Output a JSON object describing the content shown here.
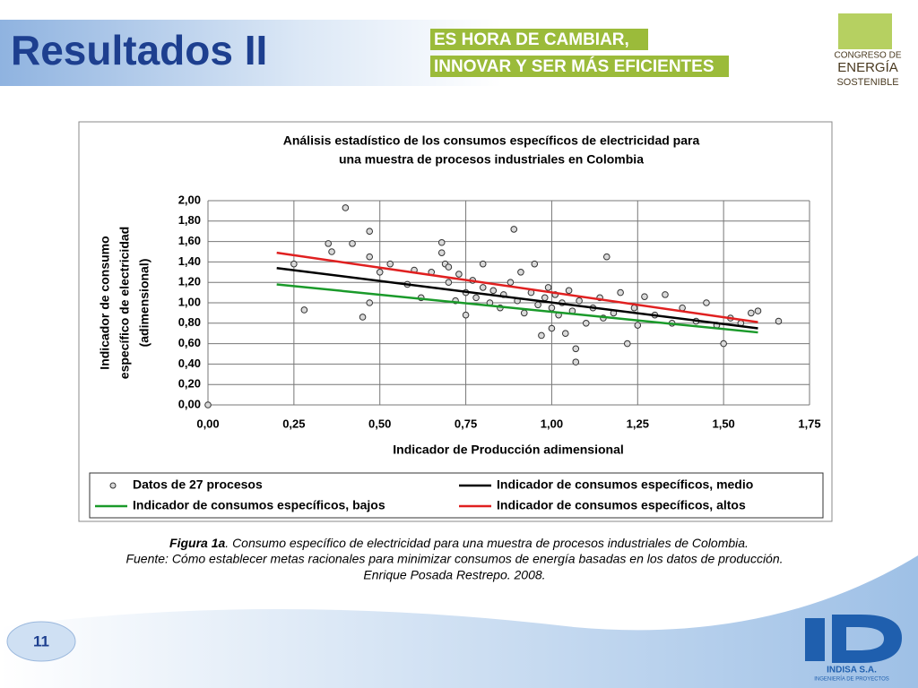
{
  "slide": {
    "title": "Resultados II",
    "banner": [
      "ES HORA DE CAMBIAR,",
      "INNOVAR Y SER MÁS EFICIENTES"
    ],
    "logo": [
      "CONGRESO DE",
      "ENERGÍA",
      "SOSTENIBLE"
    ],
    "caption": {
      "figure_label": "Figura 1a",
      "figure_text": ". Consumo específico de electricidad para una muestra de procesos industriales de Colombia.",
      "source": "Fuente: Cómo establecer metas racionales para minimizar consumos de energía basadas en los datos de producción.",
      "author": "Enrique Posada Restrepo. 2008."
    },
    "page_number": "11",
    "company": "INDISA S.A.",
    "company_tagline": "INGENIERÍA DE PROYECTOS"
  },
  "chart_data": {
    "type": "scatter",
    "title": [
      "Análisis estadístico de los consumos específicos de electricidad para",
      "una muestra de procesos industriales en Colombia"
    ],
    "xlabel": "Indicador de Producción adimensional",
    "ylabel": [
      "Indicador de consumo",
      "específico de electricidad",
      "(adimensional)"
    ],
    "xlim": [
      0,
      1.75
    ],
    "xticks": [
      {
        "value": 0,
        "label": "0,00"
      },
      {
        "value": 0.25,
        "label": "0,25"
      },
      {
        "value": 0.5,
        "label": "0,50"
      },
      {
        "value": 0.75,
        "label": "0,75"
      },
      {
        "value": 1,
        "label": "1,00"
      },
      {
        "value": 1.25,
        "label": "1,25"
      },
      {
        "value": 1.5,
        "label": "1,50"
      },
      {
        "value": 1.75,
        "label": "1,75"
      }
    ],
    "ylim": [
      0,
      2
    ],
    "yticks": [
      {
        "value": 0,
        "label": "0,00"
      },
      {
        "value": 0.2,
        "label": "0,20"
      },
      {
        "value": 0.4,
        "label": "0,40"
      },
      {
        "value": 0.6,
        "label": "0,60"
      },
      {
        "value": 0.8,
        "label": "0,80"
      },
      {
        "value": 1,
        "label": "1,00"
      },
      {
        "value": 1.2,
        "label": "1,20"
      },
      {
        "value": 1.4,
        "label": "1,40"
      },
      {
        "value": 1.6,
        "label": "1,60"
      },
      {
        "value": 1.8,
        "label": "1,80"
      },
      {
        "value": 2,
        "label": "2,00"
      }
    ],
    "grid": true,
    "legend": "bottom",
    "series": [
      {
        "name": "Datos de 27 procesos",
        "kind": "points",
        "color": "#d9d9d9",
        "x": [
          0.0,
          0.25,
          0.28,
          0.35,
          0.36,
          0.4,
          0.42,
          0.45,
          0.47,
          0.47,
          0.47,
          0.5,
          0.53,
          0.58,
          0.6,
          0.62,
          0.65,
          0.68,
          0.68,
          0.69,
          0.7,
          0.7,
          0.72,
          0.73,
          0.75,
          0.75,
          0.77,
          0.78,
          0.8,
          0.8,
          0.82,
          0.83,
          0.85,
          0.86,
          0.88,
          0.89,
          0.9,
          0.91,
          0.92,
          0.94,
          0.95,
          0.96,
          0.97,
          0.98,
          0.99,
          1.0,
          1.0,
          1.01,
          1.02,
          1.03,
          1.04,
          1.05,
          1.06,
          1.07,
          1.07,
          1.08,
          1.1,
          1.12,
          1.14,
          1.15,
          1.16,
          1.18,
          1.2,
          1.22,
          1.24,
          1.25,
          1.27,
          1.3,
          1.33,
          1.35,
          1.38,
          1.42,
          1.45,
          1.48,
          1.5,
          1.52,
          1.55,
          1.58,
          1.6,
          1.66
        ],
        "values": [
          0.0,
          1.38,
          0.93,
          1.58,
          1.5,
          1.93,
          1.58,
          0.86,
          1.7,
          1.45,
          1.0,
          1.3,
          1.38,
          1.18,
          1.32,
          1.05,
          1.3,
          1.59,
          1.49,
          1.38,
          1.35,
          1.2,
          1.02,
          1.28,
          1.1,
          0.88,
          1.22,
          1.05,
          1.38,
          1.15,
          1.0,
          1.12,
          0.95,
          1.08,
          1.2,
          1.72,
          1.02,
          1.3,
          0.9,
          1.1,
          1.38,
          0.98,
          0.68,
          1.05,
          1.15,
          0.95,
          0.75,
          1.08,
          0.88,
          1.0,
          0.7,
          1.12,
          0.92,
          0.42,
          0.55,
          1.02,
          0.8,
          0.95,
          1.05,
          0.85,
          1.45,
          0.9,
          1.1,
          0.6,
          0.95,
          0.78,
          1.06,
          0.88,
          1.08,
          0.8,
          0.95,
          0.82,
          1.0,
          0.78,
          0.6,
          0.85,
          0.8,
          0.9,
          0.92,
          0.82
        ]
      },
      {
        "name": "Indicador de consumos específicos, medio",
        "kind": "line",
        "color": "#000000",
        "x": [
          0.2,
          1.6
        ],
        "values": [
          1.34,
          0.75
        ]
      },
      {
        "name": "Indicador de consumos específicos, bajos",
        "kind": "line",
        "color": "#1a9a2a",
        "x": [
          0.2,
          1.6
        ],
        "values": [
          1.18,
          0.71
        ]
      },
      {
        "name": "Indicador de consumos específicos, altos",
        "kind": "line",
        "color": "#e02020",
        "x": [
          0.2,
          1.6
        ],
        "values": [
          1.49,
          0.81
        ]
      }
    ]
  }
}
